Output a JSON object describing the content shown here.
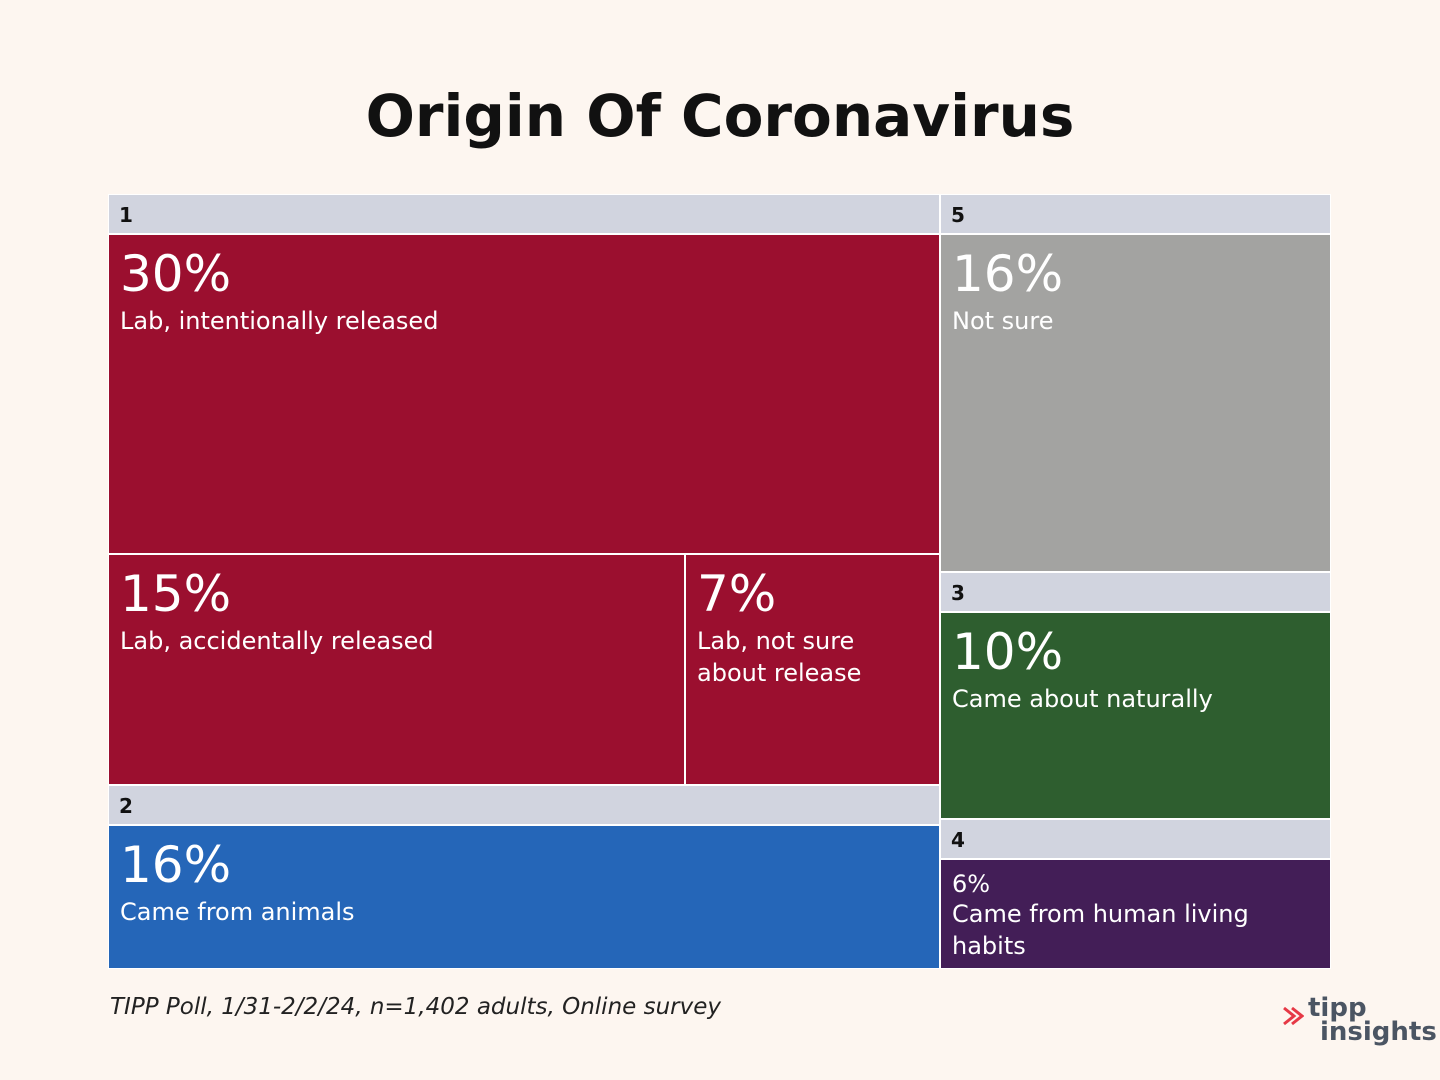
{
  "title": "Origin Of Coronavirus",
  "source": "TIPP Poll, 1/31-2/2/24, n=1,402 adults, Online survey",
  "brand": {
    "line1": "tipp",
    "line2": "insights",
    "icon": "arrow-icon",
    "accent": "#e63946"
  },
  "colors": {
    "header": "#d1d4df",
    "lab": "#9b0f2f",
    "animals": "#2566b8",
    "not_sure": "#a3a3a1",
    "naturally": "#2e5e2f",
    "human": "#431e57"
  },
  "chart_data": {
    "type": "treemap",
    "title": "Origin Of Coronavirus",
    "groups": [
      {
        "id": "1",
        "items": [
          {
            "value": 30,
            "pct_label": "30%",
            "label": "Lab, intentionally released"
          },
          {
            "value": 15,
            "pct_label": "15%",
            "label": "Lab, accidentally released"
          },
          {
            "value": 7,
            "pct_label": "7%",
            "label": "Lab, not sure about release"
          }
        ]
      },
      {
        "id": "2",
        "items": [
          {
            "value": 16,
            "pct_label": "16%",
            "label": "Came from animals"
          }
        ]
      },
      {
        "id": "5",
        "items": [
          {
            "value": 16,
            "pct_label": "16%",
            "label": "Not sure"
          }
        ]
      },
      {
        "id": "3",
        "items": [
          {
            "value": 10,
            "pct_label": "10%",
            "label": "Came about naturally"
          }
        ]
      },
      {
        "id": "4",
        "items": [
          {
            "value": 6,
            "pct_label": "6%",
            "label": "Came from human living habits"
          }
        ]
      }
    ]
  }
}
